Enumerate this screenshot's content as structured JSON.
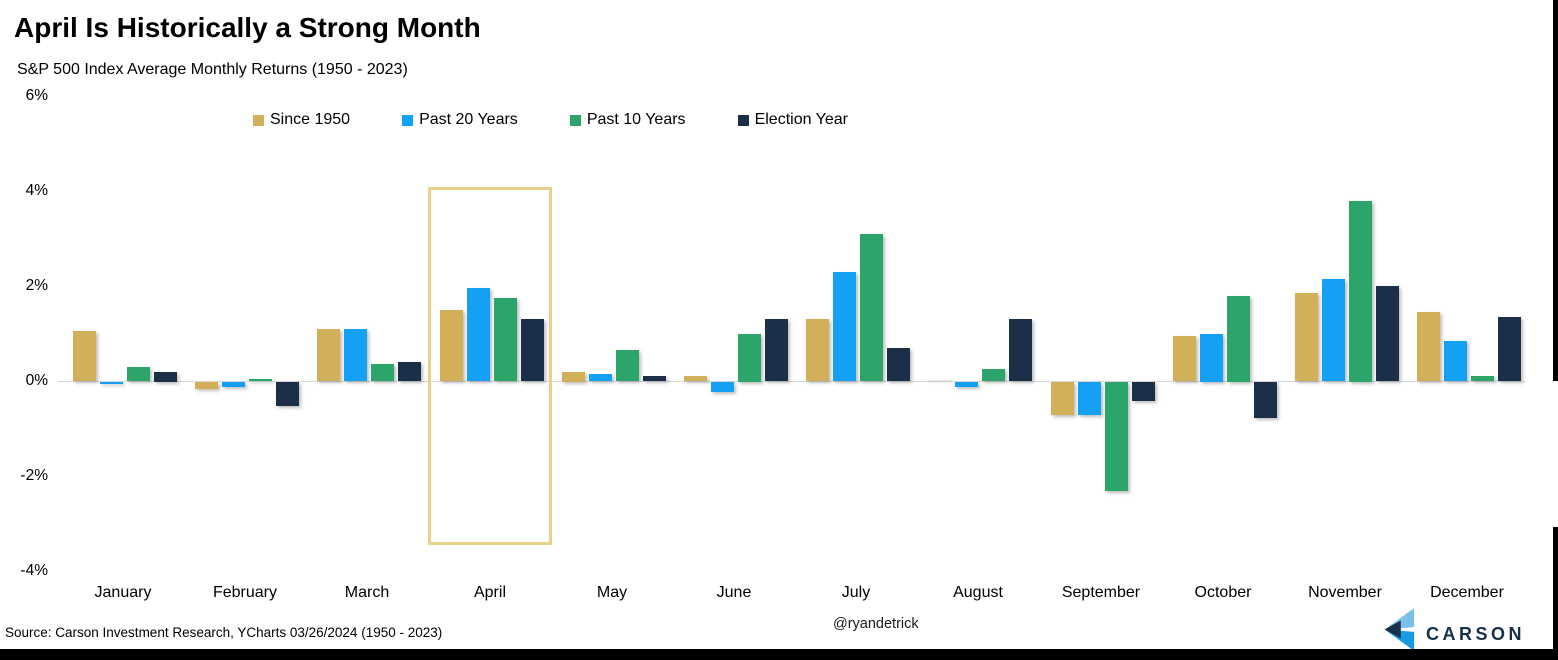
{
  "chart_data": {
    "type": "bar",
    "title": "April Is Historically a Strong Month",
    "subtitle": "S&P 500 Index Average Monthly Returns (1950 - 2023)",
    "categories": [
      "January",
      "February",
      "March",
      "April",
      "May",
      "June",
      "July",
      "August",
      "September",
      "October",
      "November",
      "December"
    ],
    "series": [
      {
        "name": "Since 1950",
        "color": "#d2b05a",
        "values": [
          1.05,
          -0.15,
          1.1,
          1.5,
          0.2,
          0.1,
          1.3,
          0.0,
          -0.7,
          0.95,
          1.85,
          1.45
        ]
      },
      {
        "name": "Past 20 Years",
        "color": "#14a0f4",
        "values": [
          -0.05,
          -0.1,
          1.1,
          1.95,
          0.15,
          -0.2,
          2.3,
          -0.1,
          -0.7,
          1.0,
          2.15,
          0.85
        ]
      },
      {
        "name": "Past 10 Years",
        "color": "#2ba56a",
        "values": [
          0.3,
          0.05,
          0.35,
          1.75,
          0.65,
          1.0,
          3.1,
          0.25,
          -2.3,
          1.8,
          3.8,
          0.1
        ]
      },
      {
        "name": "Election Year",
        "color": "#1b3048",
        "values": [
          0.2,
          -0.5,
          0.4,
          1.3,
          0.1,
          1.3,
          0.7,
          1.3,
          -0.4,
          -0.75,
          2.0,
          1.35
        ]
      }
    ],
    "y_ticks": [
      "6%",
      "4%",
      "2%",
      "0%",
      "-2%",
      "-4%"
    ],
    "y_tick_values": [
      6,
      4,
      2,
      0,
      -2,
      -4
    ],
    "ylim": [
      -4,
      6
    ],
    "xlabel": "",
    "ylabel": "",
    "grid": "zero-line-only",
    "legend_position": "top",
    "highlighted_category": "April",
    "highlight_color": "#e9d18c"
  },
  "footer": {
    "source": "Source: Carson Investment Research, YCharts 03/26/2024 (1950 - 2023)",
    "handle": "@ryandetrick",
    "logo_text": "CARSON"
  }
}
